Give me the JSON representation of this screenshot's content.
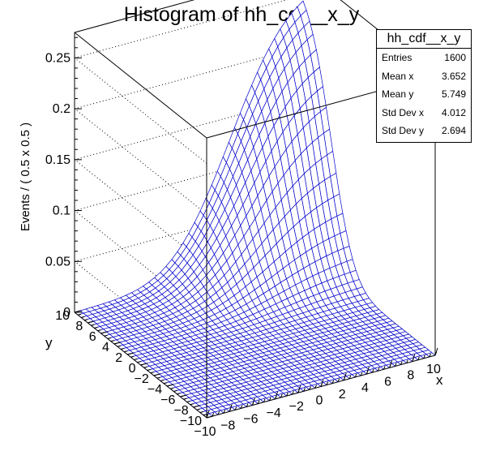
{
  "chart_data": {
    "type": "surface",
    "title": "Histogram of hh_cdf__x_y",
    "xlabel": "x",
    "ylabel": "y",
    "zlabel": "Events / ( 0.5 x 0.5 )",
    "xlim": [
      -10,
      10
    ],
    "ylim": [
      -10,
      10
    ],
    "zlim": [
      0,
      0.275
    ],
    "x_ticks": [
      "−10",
      "−8",
      "−6",
      "−4",
      "−2",
      "0",
      "2",
      "4",
      "6",
      "8",
      "10"
    ],
    "y_ticks": [
      "−10",
      "−8",
      "−6",
      "−4",
      "−2",
      "0",
      "2",
      "4",
      "6",
      "8",
      "10"
    ],
    "z_ticks": [
      "0",
      "0.05",
      "0.1",
      "0.15",
      "0.2",
      "0.25"
    ],
    "bins": [
      40,
      40
    ],
    "bin_width": [
      0.5,
      0.5
    ],
    "mesh_color": "#0000cc",
    "surface": {
      "description_function": "cumulative distribution of a 2D Gaussian",
      "x_cdf": {
        "mean": 3.652,
        "sigma": 4.012
      },
      "y_cdf": {
        "mean": 5.749,
        "sigma": 2.694
      },
      "peak": 0.275
    },
    "stats": {
      "title": "hh_cdf__x_y",
      "rows": [
        {
          "label": "Entries",
          "value": "1600"
        },
        {
          "label": "Mean x",
          "value": "3.652"
        },
        {
          "label": "Mean y",
          "value": "5.749"
        },
        {
          "label": "Std Dev x",
          "value": "4.012"
        },
        {
          "label": "Std Dev y",
          "value": "2.694"
        }
      ]
    }
  }
}
